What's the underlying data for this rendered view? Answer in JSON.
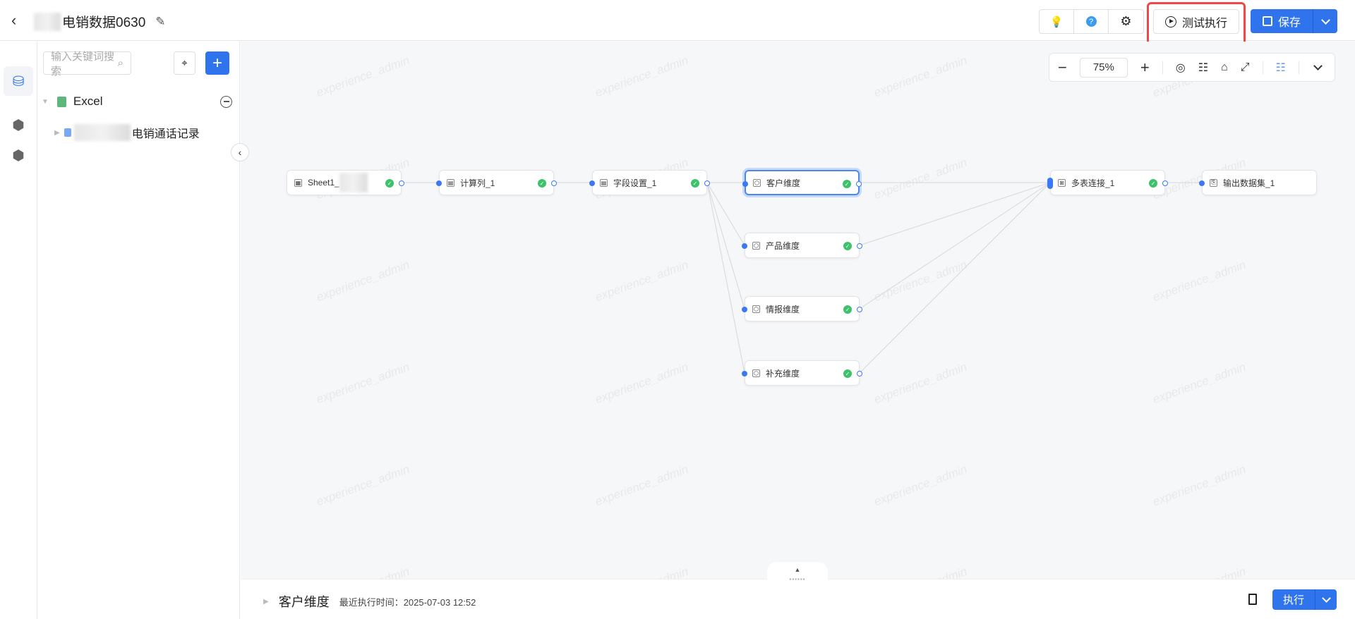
{
  "header": {
    "title": "电销数据0630",
    "test_run_label": "测试执行",
    "save_label": "保存",
    "icons": [
      "lightbulb-icon",
      "help-icon",
      "gear-icon"
    ]
  },
  "sidebar": {
    "search_placeholder": "输入关键词搜索",
    "tree": {
      "root_label": "Excel",
      "child_label": "电销通话记录"
    }
  },
  "toolbar": {
    "zoom": "75%"
  },
  "nodes": [
    {
      "label": "Sheet1_",
      "type": "source",
      "status": "success"
    },
    {
      "label": "计算列_1",
      "type": "calc",
      "status": "success"
    },
    {
      "label": "字段设置_1",
      "type": "field",
      "status": "success"
    },
    {
      "label": "客户维度",
      "type": "dimension",
      "status": "success",
      "selected": true
    },
    {
      "label": "产品维度",
      "type": "dimension",
      "status": "success"
    },
    {
      "label": "情报维度",
      "type": "dimension",
      "status": "success"
    },
    {
      "label": "补充维度",
      "type": "dimension",
      "status": "success"
    },
    {
      "label": "多表连接_1",
      "type": "join",
      "status": "success"
    },
    {
      "label": "输出数据集_1",
      "type": "output"
    }
  ],
  "bottom": {
    "title": "客户维度",
    "last_run": "最近执行时间：2025-07-03 12:52",
    "exec_label": "执行"
  },
  "watermark": "experience_admin",
  "colors": {
    "accent": "#2f74ec",
    "success": "#3ec16b",
    "highlight": "#f04848"
  }
}
